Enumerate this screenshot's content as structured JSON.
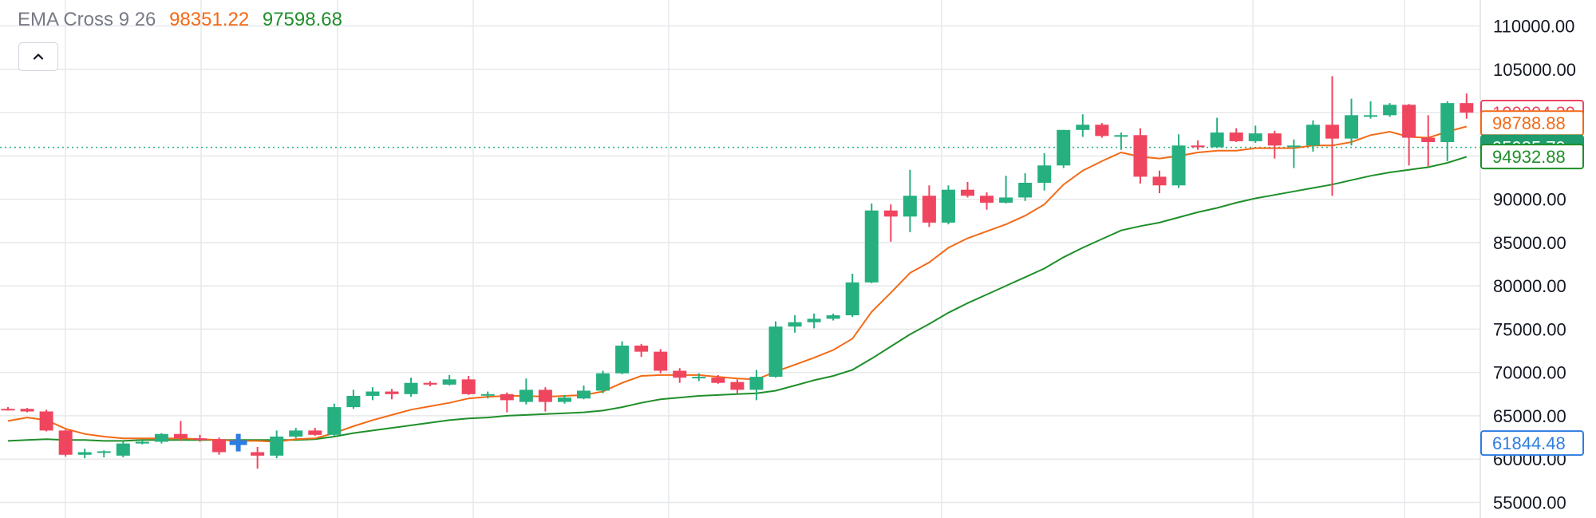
{
  "legend": {
    "name": "EMA Cross 9 26",
    "fast_value": "98351.22",
    "slow_value": "97598.68",
    "name_color": "#787b86",
    "fast_color": "#f36a16",
    "slow_color": "#1f8f2a"
  },
  "collapse_button": {
    "icon": "chevron-up-icon"
  },
  "colors": {
    "up": "#26b07f",
    "down": "#f0455f",
    "ema_fast": "#f36a16",
    "ema_slow": "#1f8f2a",
    "grid": "#e6e8ec",
    "price_line": "#26b07f",
    "marker": "#2f7de1"
  },
  "price_tags": [
    {
      "label": "100004.29",
      "style": "outline",
      "color": "#f0455f",
      "value": 100004.29
    },
    {
      "label": "98788.88",
      "style": "outline",
      "color": "#f36a16",
      "value": 98788.88
    },
    {
      "label": "95985.79",
      "style": "filled",
      "color": "#1f9d6e",
      "value": 95985.79
    },
    {
      "label": "94932.88",
      "style": "outline",
      "color": "#1f8f2a",
      "value": 94932.88
    },
    {
      "label": "61844.48",
      "style": "outline",
      "color": "#2f7de1",
      "value": 61844.48
    }
  ],
  "chart_data": {
    "type": "candlestick",
    "y_axis_ticks": [
      "110000.00",
      "105000.00",
      "100000.00",
      "95000.00",
      "90000.00",
      "85000.00",
      "80000.00",
      "75000.00",
      "70000.00",
      "65000.00",
      "60000.00",
      "55000.00"
    ],
    "ylim": [
      53200,
      113000
    ],
    "grid": true,
    "current_price": 95985.79,
    "marker_candle_index": 12,
    "ohlc": [
      [
        65800,
        66000,
        65600,
        65700
      ],
      [
        65800,
        65900,
        65400,
        65500
      ],
      [
        65500,
        65700,
        63200,
        63300
      ],
      [
        63300,
        63400,
        60300,
        60500
      ],
      [
        60500,
        61200,
        60100,
        60800
      ],
      [
        60800,
        61000,
        60200,
        60900
      ],
      [
        60400,
        62100,
        60200,
        61800
      ],
      [
        61800,
        62200,
        61700,
        62000
      ],
      [
        62000,
        63000,
        61800,
        62900
      ],
      [
        62900,
        64400,
        62100,
        62400
      ],
      [
        62400,
        62800,
        62000,
        62300
      ],
      [
        62300,
        62500,
        60500,
        60800
      ],
      [
        61800,
        62600,
        61200,
        61900
      ],
      [
        60800,
        61400,
        58900,
        60400
      ],
      [
        60400,
        63300,
        60100,
        62600
      ],
      [
        62600,
        63600,
        62400,
        63300
      ],
      [
        63300,
        63600,
        62700,
        62800
      ],
      [
        62800,
        66400,
        62700,
        66000
      ],
      [
        66000,
        68000,
        65800,
        67300
      ],
      [
        67300,
        68300,
        66800,
        67800
      ],
      [
        67800,
        68100,
        66900,
        67500
      ],
      [
        67500,
        69400,
        67200,
        68800
      ],
      [
        68800,
        69000,
        68400,
        68600
      ],
      [
        68600,
        69700,
        68500,
        69200
      ],
      [
        69200,
        69600,
        67400,
        67500
      ],
      [
        67400,
        67800,
        67000,
        67500
      ],
      [
        67500,
        67700,
        65400,
        66800
      ],
      [
        66600,
        69300,
        66300,
        68000
      ],
      [
        68000,
        68300,
        65500,
        66600
      ],
      [
        66600,
        67400,
        66400,
        67100
      ],
      [
        67000,
        68500,
        66900,
        67900
      ],
      [
        67900,
        70200,
        67600,
        69900
      ],
      [
        69900,
        73600,
        69800,
        73100
      ],
      [
        73100,
        73300,
        71800,
        72400
      ],
      [
        72400,
        72700,
        69900,
        70200
      ],
      [
        70200,
        70500,
        68800,
        69400
      ],
      [
        69400,
        69900,
        69000,
        69500
      ],
      [
        69400,
        69700,
        68700,
        68800
      ],
      [
        68900,
        69200,
        67600,
        68000
      ],
      [
        68000,
        70300,
        66800,
        69500
      ],
      [
        69500,
        75900,
        69400,
        75300
      ],
      [
        75300,
        76600,
        74600,
        75800
      ],
      [
        75800,
        76800,
        75100,
        76200
      ],
      [
        76200,
        76800,
        76000,
        76600
      ],
      [
        76600,
        81400,
        76400,
        80400
      ],
      [
        80400,
        89500,
        80300,
        88700
      ],
      [
        88700,
        89400,
        85100,
        88000
      ],
      [
        88000,
        93400,
        86200,
        90400
      ],
      [
        90400,
        91600,
        86800,
        87300
      ],
      [
        87300,
        91600,
        87100,
        91100
      ],
      [
        91100,
        92000,
        90200,
        90400
      ],
      [
        90400,
        90800,
        88800,
        89600
      ],
      [
        89600,
        92700,
        89500,
        90200
      ],
      [
        90200,
        93000,
        89800,
        91900
      ],
      [
        91900,
        95300,
        91000,
        93900
      ],
      [
        93900,
        98000,
        93600,
        98000
      ],
      [
        98000,
        99800,
        97200,
        98600
      ],
      [
        98600,
        98800,
        97100,
        97300
      ],
      [
        97300,
        97700,
        95700,
        97400
      ],
      [
        97400,
        98200,
        91800,
        92600
      ],
      [
        92600,
        93300,
        90700,
        91600
      ],
      [
        91600,
        97500,
        91300,
        96200
      ],
      [
        96200,
        96800,
        95700,
        96000
      ],
      [
        96000,
        99400,
        95900,
        97700
      ],
      [
        97700,
        98200,
        96600,
        96700
      ],
      [
        96700,
        98500,
        96500,
        97600
      ],
      [
        97600,
        97900,
        94700,
        96200
      ],
      [
        96200,
        96900,
        93600,
        96200
      ],
      [
        96200,
        99100,
        95500,
        98600
      ],
      [
        98600,
        104200,
        90400,
        97000
      ],
      [
        97000,
        101600,
        96200,
        99700
      ],
      [
        99700,
        101300,
        99300,
        99700
      ],
      [
        99700,
        101100,
        99500,
        100900
      ],
      [
        100900,
        101000,
        93900,
        97100
      ],
      [
        97100,
        99700,
        93800,
        96600
      ],
      [
        96600,
        101300,
        94400,
        101100
      ],
      [
        101100,
        102200,
        99300,
        100000
      ]
    ],
    "ema_fast": [
      64400,
      64800,
      64500,
      63500,
      62900,
      62600,
      62400,
      62400,
      62400,
      62400,
      62300,
      62200,
      62100,
      62100,
      62000,
      62300,
      62400,
      63000,
      63800,
      64500,
      65100,
      65700,
      66100,
      66500,
      67000,
      67200,
      67300,
      67300,
      67200,
      67300,
      67400,
      67800,
      68800,
      69600,
      69700,
      69700,
      69700,
      69500,
      69300,
      69200,
      70100,
      70900,
      71700,
      72600,
      73900,
      77000,
      79200,
      81500,
      82700,
      84400,
      85500,
      86300,
      87100,
      88100,
      89400,
      91700,
      93300,
      94400,
      95400,
      94900,
      94700,
      95000,
      95400,
      95600,
      95600,
      95900,
      95900,
      95900,
      96200,
      96200,
      96600,
      97400,
      97800,
      97200,
      97100,
      97800,
      98400
    ],
    "ema_slow": [
      62100,
      62200,
      62300,
      62200,
      62200,
      62100,
      62100,
      62200,
      62200,
      62200,
      62200,
      62200,
      62200,
      62200,
      62200,
      62200,
      62300,
      62600,
      63000,
      63300,
      63600,
      63900,
      64200,
      64500,
      64700,
      64800,
      65000,
      65100,
      65200,
      65300,
      65400,
      65600,
      66000,
      66500,
      66900,
      67100,
      67300,
      67400,
      67500,
      67600,
      67900,
      68500,
      69100,
      69600,
      70300,
      71600,
      73000,
      74400,
      75600,
      76900,
      78000,
      79000,
      80000,
      81000,
      82000,
      83300,
      84400,
      85400,
      86400,
      86900,
      87300,
      87900,
      88500,
      89000,
      89600,
      90100,
      90500,
      90900,
      91300,
      91700,
      92200,
      92700,
      93100,
      93400,
      93700,
      94200,
      94900
    ]
  }
}
